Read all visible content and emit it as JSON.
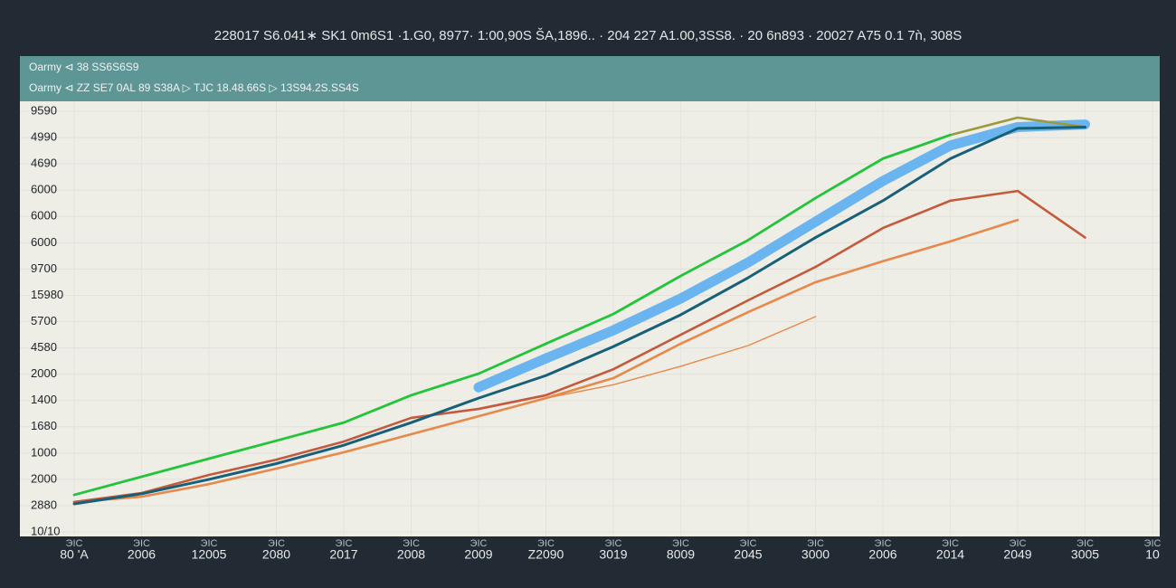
{
  "chart_data": {
    "type": "line",
    "title": "228017 S6.041∗ SK1 0m6S1 ·1.G0, 8977· 1:00,90S ŠA,1896.. · 204 227 A1.00,3SS8. · 20 6n893 · 20027 A75 0.1 7ǹ, 308S",
    "legend_text": [
      "Oarmy ⊲ 38 SS6S6S9",
      "Oarmy ⊲ ZZ SE7 0AL 89 S38A ▷ TJC 18.48.66S ▷ 13S94.2S.SS4S"
    ],
    "x_tick_sublabel": "ЭIC",
    "categories": [
      "80 'A",
      "2006",
      "12005",
      "2080",
      "2017",
      "2008",
      "2009",
      "Z2090",
      "3019",
      "8009",
      "2045",
      "3000",
      "2006",
      "2014",
      "2049",
      "3005",
      "10"
    ],
    "ylim": [
      -0.17,
      16.38
    ],
    "yticks": [
      {
        "value": 0,
        "label": "10/10"
      },
      {
        "value": 1,
        "label": "2880"
      },
      {
        "value": 2,
        "label": "2000"
      },
      {
        "value": 3,
        "label": "1000"
      },
      {
        "value": 4,
        "label": "1680"
      },
      {
        "value": 5,
        "label": "1400"
      },
      {
        "value": 6,
        "label": "2000"
      },
      {
        "value": 7,
        "label": "4580"
      },
      {
        "value": 8,
        "label": "5700"
      },
      {
        "value": 9,
        "label": "15980"
      },
      {
        "value": 10,
        "label": "9700"
      },
      {
        "value": 11,
        "label": "6000"
      },
      {
        "value": 12,
        "label": "6000"
      },
      {
        "value": 13,
        "label": "6000"
      },
      {
        "value": 14,
        "label": "4690"
      },
      {
        "value": 15,
        "label": "4990"
      },
      {
        "value": 16,
        "label": "9590"
      }
    ],
    "series": [
      {
        "color": "#6ab4f0",
        "width": 11,
        "values": [
          null,
          null,
          null,
          null,
          null,
          null,
          5.5,
          6.6,
          7.67,
          8.88,
          10.25,
          11.8,
          13.35,
          14.7,
          15.4,
          15.5,
          null
        ]
      },
      {
        "color": "#e7894a",
        "width": 1.4,
        "values": [
          null,
          null,
          null,
          null,
          null,
          null,
          null,
          5.09,
          5.6,
          6.3,
          7.09,
          8.19,
          null,
          null,
          null,
          null,
          null
        ]
      },
      {
        "color": "#e7894a",
        "width": 2.6,
        "values": [
          1.14,
          1.34,
          1.82,
          2.41,
          3.03,
          3.72,
          4.4,
          5.09,
          5.85,
          7.16,
          8.36,
          9.5,
          10.3,
          11.05,
          11.87,
          null,
          null
        ]
      },
      {
        "color": "#c45a3c",
        "width": 2.6,
        "values": [
          1.14,
          1.48,
          2.17,
          2.75,
          3.44,
          4.34,
          4.68,
          5.2,
          6.19,
          7.5,
          8.81,
          10.08,
          11.56,
          12.6,
          12.97,
          11.2,
          null
        ]
      },
      {
        "color": "#9a9a3c",
        "width": 2.6,
        "values": [
          null,
          null,
          null,
          null,
          null,
          null,
          null,
          null,
          null,
          null,
          null,
          null,
          14.2,
          15.1,
          15.76,
          15.4,
          null
        ]
      },
      {
        "color": "#22c43a",
        "width": 2.8,
        "values": [
          1.41,
          2.1,
          2.79,
          3.47,
          4.16,
          5.2,
          6.02,
          7.16,
          8.29,
          9.74,
          11.1,
          12.7,
          14.2,
          15.1,
          null,
          null,
          null
        ]
      },
      {
        "color": "#17607a",
        "width": 3,
        "values": [
          1.07,
          1.45,
          2.0,
          2.6,
          3.3,
          4.16,
          5.09,
          5.95,
          7.05,
          8.26,
          9.67,
          11.2,
          12.6,
          14.2,
          15.35,
          15.4,
          null
        ]
      }
    ]
  }
}
